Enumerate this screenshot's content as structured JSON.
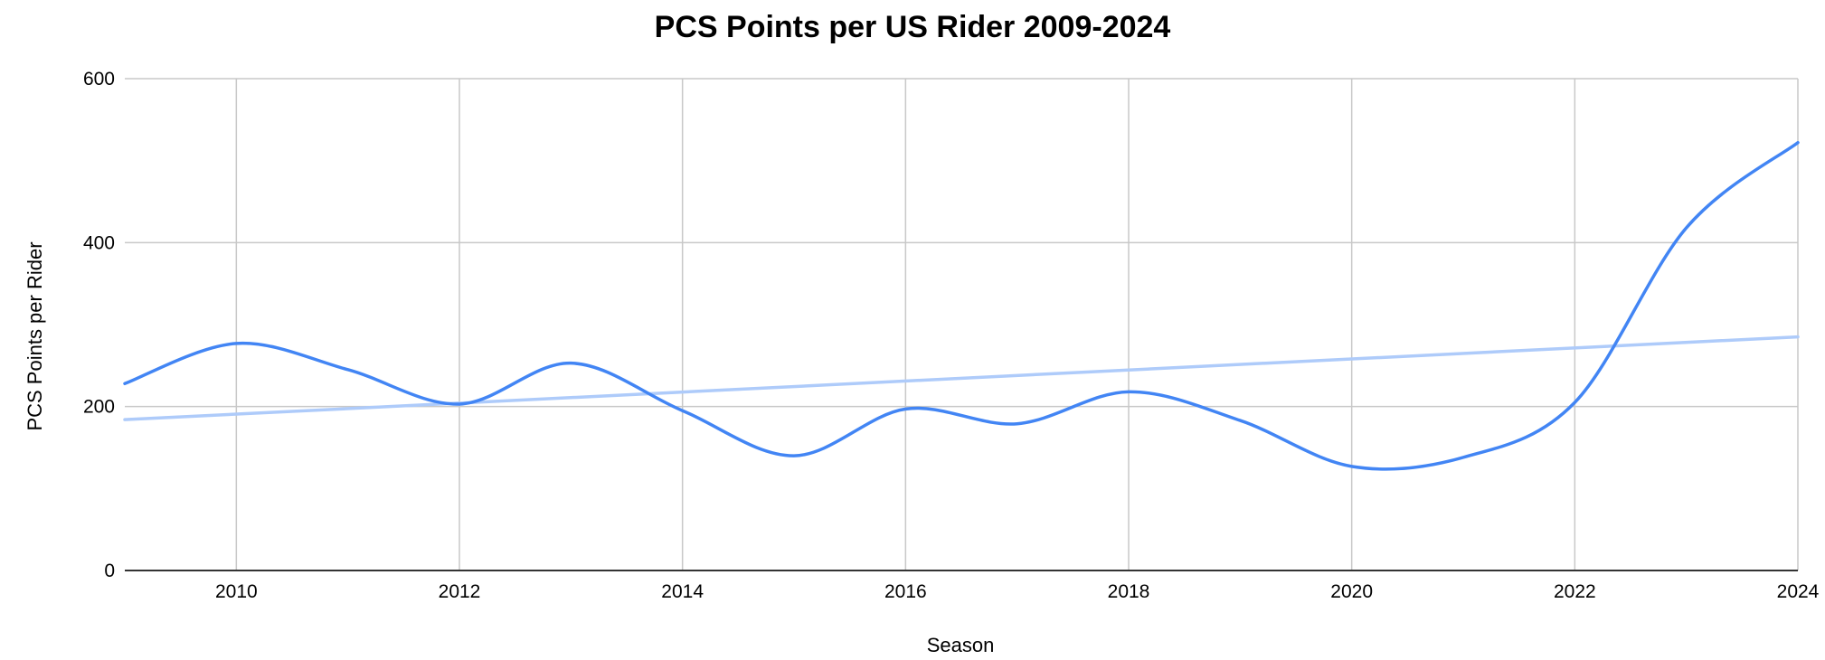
{
  "chart_data": {
    "type": "line",
    "title": "PCS Points per US Rider 2009-2024",
    "xlabel": "Season",
    "ylabel": "PCS Points per Rider",
    "xlim": [
      2009,
      2024
    ],
    "ylim": [
      0,
      600
    ],
    "x_ticks": [
      2010,
      2012,
      2014,
      2016,
      2018,
      2020,
      2022,
      2024
    ],
    "y_ticks": [
      0,
      200,
      400,
      600
    ],
    "grid": true,
    "legend": "none",
    "series": [
      {
        "color": "#4285f4",
        "smooth": true,
        "x": [
          2009,
          2010,
          2011,
          2012,
          2013,
          2014,
          2015,
          2016,
          2017,
          2018,
          2019,
          2020,
          2021,
          2022,
          2023,
          2024
        ],
        "y": [
          228,
          277,
          245,
          203,
          253,
          195,
          140,
          197,
          179,
          218,
          183,
          127,
          138,
          205,
          418,
          522
        ]
      }
    ],
    "trendline": {
      "color": "#aecbfa",
      "type": "linear",
      "start": [
        2009,
        184
      ],
      "end": [
        2024,
        285
      ]
    }
  }
}
